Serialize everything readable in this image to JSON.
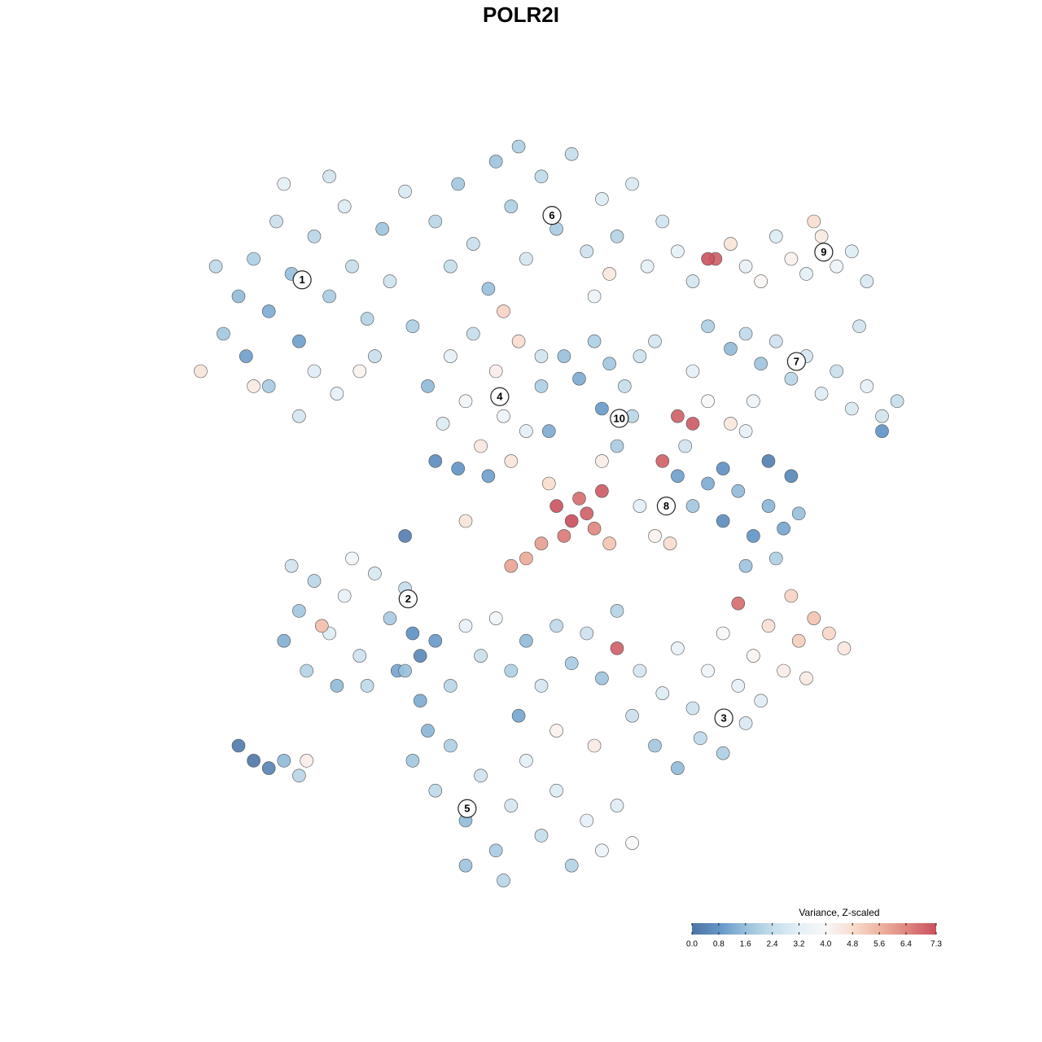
{
  "chart_data": {
    "type": "scatter",
    "title": "POLR2I",
    "xlim": [
      0,
      100
    ],
    "ylim": [
      0,
      100
    ],
    "x": [
      8,
      10,
      12,
      14,
      15,
      17,
      18,
      20,
      22,
      24,
      25,
      27,
      29,
      30,
      32,
      20,
      23,
      18,
      14,
      26,
      11,
      7,
      33,
      22,
      16,
      28,
      36,
      39,
      41,
      44,
      46,
      48,
      50,
      52,
      54,
      56,
      58,
      60,
      62,
      64,
      66,
      68,
      38,
      43,
      57,
      59,
      70,
      47,
      75,
      77,
      79,
      81,
      83,
      85,
      87,
      89,
      91,
      93,
      92,
      73,
      72,
      86,
      72,
      75,
      77,
      79,
      81,
      83,
      85,
      87,
      89,
      91,
      93,
      95,
      97,
      95,
      78,
      70,
      35,
      37,
      38,
      40,
      42,
      44,
      45,
      47,
      48,
      50,
      36,
      39,
      43,
      46,
      41,
      50,
      45,
      51,
      53,
      55,
      57,
      59,
      61,
      62,
      60,
      63,
      58,
      65,
      58,
      68,
      70,
      72,
      75,
      77,
      66,
      69,
      68,
      70,
      72,
      74,
      76,
      78,
      80,
      82,
      84,
      81,
      77,
      83,
      80,
      74,
      63,
      65,
      67,
      52,
      54,
      55,
      56,
      53,
      57,
      50,
      48,
      46,
      58,
      59,
      51,
      16,
      18,
      20,
      22,
      24,
      26,
      28,
      30,
      32,
      19,
      23,
      27,
      17,
      21,
      33,
      34,
      25,
      31,
      10,
      12,
      14,
      16,
      18,
      19,
      63,
      66,
      68,
      70,
      72,
      74,
      76,
      78,
      80,
      82,
      84,
      86,
      88,
      90,
      65,
      68,
      71,
      74,
      77,
      79,
      83,
      76,
      60,
      85,
      32,
      34,
      36,
      38,
      40,
      42,
      44,
      46,
      48,
      50,
      52,
      54,
      56,
      58,
      60,
      33,
      36,
      38,
      40,
      42,
      44,
      46,
      48,
      50,
      52,
      54,
      56,
      58,
      60,
      62,
      45,
      40,
      35,
      57,
      52,
      47,
      62,
      12,
      5,
      32,
      40
    ],
    "y": [
      75,
      80,
      85,
      78,
      90,
      83,
      74,
      88,
      80,
      92,
      84,
      77,
      89,
      82,
      94,
      70,
      67,
      64,
      68,
      70,
      72,
      84,
      76,
      96,
      95,
      72,
      90,
      95,
      87,
      98,
      92,
      85,
      96,
      89,
      99,
      86,
      93,
      88,
      95,
      84,
      90,
      86,
      84,
      81,
      80,
      83,
      82,
      100,
      87,
      84,
      82,
      88,
      85,
      83,
      88,
      84,
      86,
      82,
      76,
      85,
      85,
      90,
      76,
      73,
      75,
      71,
      74,
      69,
      72,
      67,
      70,
      65,
      68,
      64,
      66,
      62,
      66,
      70,
      68,
      63,
      72,
      66,
      60,
      70,
      64,
      74,
      62,
      68,
      58,
      57,
      56,
      58,
      75,
      72,
      78,
      62,
      72,
      69,
      74,
      71,
      68,
      64,
      60,
      72,
      65,
      74,
      58,
      64,
      63,
      66,
      63,
      62,
      58,
      60,
      56,
      52,
      55,
      50,
      54,
      48,
      52,
      49,
      51,
      45,
      44,
      56,
      58,
      57,
      52,
      48,
      47,
      52,
      50,
      53,
      51,
      48,
      49,
      47,
      45,
      44,
      54,
      47,
      55,
      34,
      38,
      42,
      35,
      40,
      32,
      43,
      37,
      41,
      30,
      28,
      28,
      44,
      36,
      35,
      32,
      45,
      30,
      20,
      18,
      17,
      18,
      16,
      18,
      30,
      27,
      33,
      25,
      30,
      35,
      28,
      32,
      36,
      30,
      34,
      37,
      35,
      33,
      20,
      17,
      21,
      19,
      23,
      26,
      40,
      39,
      33,
      29,
      30,
      26,
      34,
      28,
      36,
      32,
      37,
      30,
      34,
      28,
      36,
      31,
      35,
      29,
      38,
      18,
      14,
      20,
      10,
      16,
      6,
      12,
      18,
      8,
      14,
      4,
      10,
      6,
      12,
      7,
      2,
      4,
      22,
      20,
      22,
      24,
      24,
      68,
      70,
      48,
      50
    ],
    "values": [
      1.8,
      1.5,
      2.0,
      1.2,
      2.5,
      1.6,
      1.0,
      2.2,
      1.9,
      3.0,
      2.4,
      2.1,
      1.7,
      2.6,
      2.9,
      3.1,
      3.3,
      2.8,
      1.9,
      4.2,
      1.0,
      2.3,
      2.0,
      2.7,
      3.2,
      2.5,
      2.2,
      1.8,
      2.5,
      1.7,
      2.0,
      2.8,
      2.3,
      1.9,
      2.4,
      2.6,
      3.0,
      2.1,
      2.9,
      3.2,
      2.7,
      3.3,
      2.4,
      1.6,
      3.5,
      4.5,
      2.8,
      2.0,
      4.6,
      3.4,
      4.1,
      3.0,
      4.2,
      3.2,
      4.4,
      3.6,
      3.1,
      2.9,
      2.7,
      7.0,
      7.2,
      4.8,
      2.0,
      1.5,
      2.3,
      1.7,
      2.6,
      2.2,
      2.8,
      3.1,
      2.5,
      2.9,
      3.3,
      2.7,
      2.4,
      0.8,
      3.6,
      3.2,
      1.5,
      3.0,
      3.3,
      3.8,
      4.5,
      4.3,
      3.6,
      4.8,
      3.2,
      2.0,
      0.6,
      0.8,
      1.0,
      4.6,
      2.4,
      2.7,
      5.0,
      1.2,
      1.6,
      1.2,
      2.0,
      1.8,
      2.4,
      2.2,
      1.9,
      2.6,
      0.9,
      2.8,
      4.3,
      7.0,
      7.1,
      4.0,
      4.5,
      3.3,
      7.0,
      2.7,
      1.0,
      1.8,
      1.2,
      0.6,
      1.5,
      0.8,
      1.4,
      1.1,
      1.6,
      2.0,
      1.7,
      0.5,
      0.3,
      0.7,
      3.2,
      4.2,
      4.8,
      7.2,
      7.3,
      6.8,
      7.0,
      6.6,
      6.4,
      6.0,
      5.8,
      5.9,
      7.1,
      5.3,
      4.8,
      1.3,
      1.8,
      2.2,
      3.0,
      3.4,
      2.6,
      2.9,
      1.9,
      2.4,
      2.1,
      1.5,
      2.3,
      2.7,
      5.4,
      0.7,
      0.5,
      3.8,
      1.1,
      0.2,
      0.1,
      0.4,
      1.5,
      2.2,
      4.3,
      2.8,
      3.0,
      3.4,
      2.6,
      3.6,
      4.0,
      3.3,
      4.1,
      4.7,
      4.3,
      5.1,
      5.3,
      4.9,
      4.5,
      1.8,
      1.5,
      2.3,
      2.0,
      2.9,
      3.1,
      5.0,
      6.8,
      7.0,
      4.4,
      1.6,
      1.2,
      0.9,
      2.2,
      3.4,
      2.5,
      3.8,
      2.0,
      1.5,
      2.8,
      2.3,
      1.9,
      2.6,
      1.7,
      2.1,
      1.8,
      2.3,
      2.0,
      1.5,
      2.6,
      1.9,
      2.8,
      3.2,
      2.4,
      3.0,
      2.1,
      3.3,
      3.6,
      3.1,
      4.0,
      2.2,
      1.7,
      1.4,
      4.4,
      4.2,
      1.1,
      2.5,
      4.4,
      4.6,
      0.3,
      4.6
    ],
    "clusters": [
      {
        "label": "1",
        "x": 18.4,
        "y": 82.2
      },
      {
        "label": "2",
        "x": 32.4,
        "y": 39.6
      },
      {
        "label": "3",
        "x": 74.1,
        "y": 23.7
      },
      {
        "label": "4",
        "x": 44.5,
        "y": 66.6
      },
      {
        "label": "5",
        "x": 40.2,
        "y": 11.6
      },
      {
        "label": "6",
        "x": 51.4,
        "y": 90.8
      },
      {
        "label": "7",
        "x": 83.7,
        "y": 71.3
      },
      {
        "label": "8",
        "x": 66.5,
        "y": 52.0
      },
      {
        "label": "9",
        "x": 87.3,
        "y": 85.9
      },
      {
        "label": "10",
        "x": 60.3,
        "y": 63.7
      }
    ],
    "colorbar": {
      "title": "Variance, Z-scaled",
      "clim": [
        0,
        7.3
      ],
      "ticks": [
        {
          "value": 0,
          "label": "0.0"
        },
        0.8,
        1.6,
        2.4,
        3.2,
        {
          "value": 4,
          "label": "4.0"
        },
        4.8,
        5.6,
        6.4,
        7.3
      ],
      "colors": [
        "#4e73a3",
        "#6395c7",
        "#98c0dc",
        "#c5ddeb",
        "#e4eff6",
        "#f7f7f7",
        "#f9ddcf",
        "#efb5a2",
        "#df8780",
        "#c9505e"
      ]
    }
  }
}
